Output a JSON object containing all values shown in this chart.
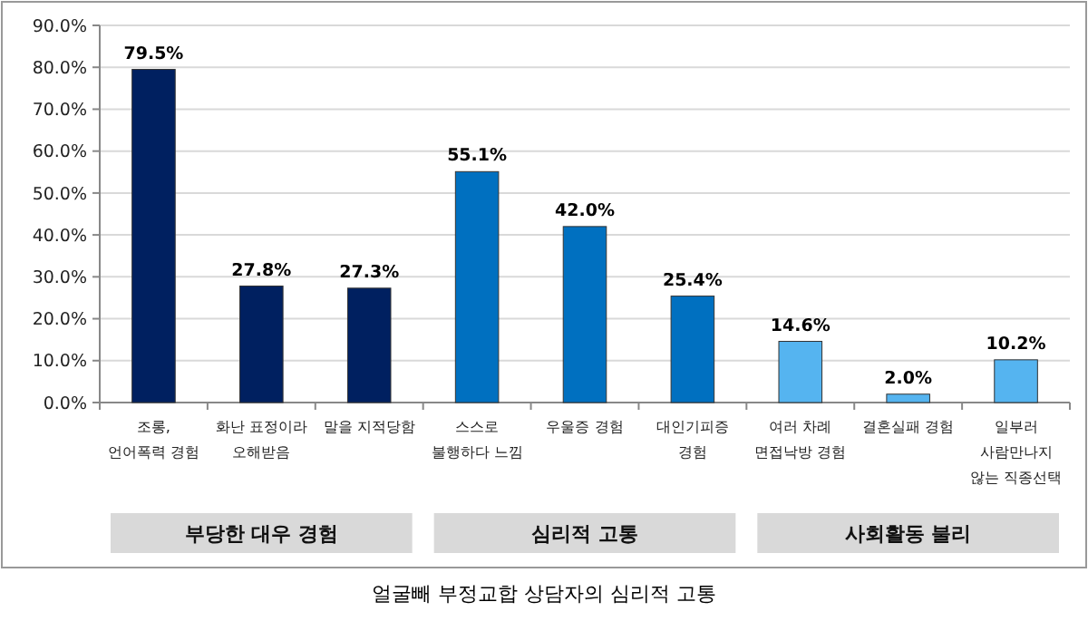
{
  "chart_data": {
    "type": "bar",
    "categories": [
      "조롱,\n언어폭력 경험",
      "화난 표정이라\n오해받음",
      "말을 지적당함",
      "스스로\n불행하다 느낌",
      "우울증 경험",
      "대인기피증\n경험",
      "여러 차례\n면접낙방 경험",
      "결혼실패 경험",
      "일부러\n사람만나지\n않는 직종선택"
    ],
    "values": [
      79.5,
      27.8,
      27.3,
      55.1,
      42.0,
      25.4,
      14.6,
      2.0,
      10.2
    ],
    "colors": [
      "#002060",
      "#002060",
      "#002060",
      "#0070c0",
      "#0070c0",
      "#0070c0",
      "#55b4f0",
      "#55b4f0",
      "#55b4f0"
    ],
    "value_labels": [
      "79.5%",
      "27.8%",
      "27.3%",
      "55.1%",
      "42.0%",
      "25.4%",
      "14.6%",
      "2.0%",
      "10.2%"
    ],
    "ylim": [
      0,
      90
    ],
    "yticks": [
      {
        "value": 0,
        "label": "0.0%"
      },
      {
        "value": 10,
        "label": "10.0%"
      },
      {
        "value": 20,
        "label": "20.0%"
      },
      {
        "value": 30,
        "label": "30.0%"
      },
      {
        "value": 40,
        "label": "40.0%"
      },
      {
        "value": 50,
        "label": "50.0%"
      },
      {
        "value": 60,
        "label": "60.0%"
      },
      {
        "value": 70,
        "label": "70.0%"
      },
      {
        "value": 80,
        "label": "80.0%"
      },
      {
        "value": 90,
        "label": "90.0%"
      }
    ],
    "grid": "y",
    "annotations": [
      "부당한 대우 경험",
      "심리적 고통",
      "사회활동 불리",
      "얼굴빼 부정교합 상담자의 심리적 고통"
    ]
  }
}
